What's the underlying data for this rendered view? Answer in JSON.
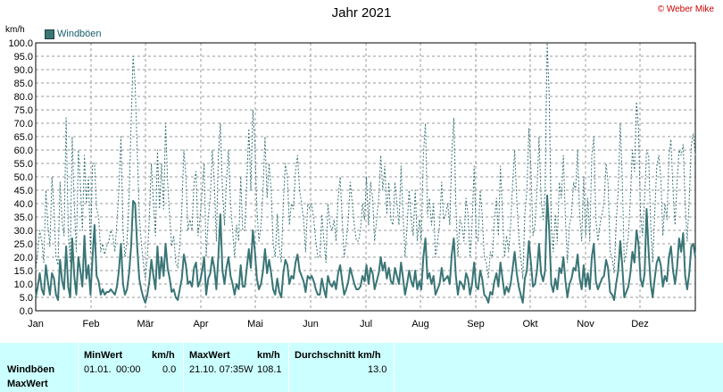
{
  "header": {
    "title": "Jahr 2021",
    "copyright": "© Weber Mike",
    "unit": "km/h"
  },
  "legend": {
    "label": "Windböen",
    "color": "#3a7576"
  },
  "chart_data": {
    "type": "line",
    "title": "Jahr 2021",
    "ylabel": "km/h",
    "ylim": [
      0,
      100
    ],
    "ytick_step": 5,
    "grid": true,
    "legend_position": "top-left",
    "x_labels": [
      "Jan",
      "Feb",
      "Mär",
      "Apr",
      "Mai",
      "Jun",
      "Jul",
      "Aug",
      "Sep",
      "Okt",
      "Nov",
      "Dez"
    ],
    "series": [
      {
        "name": "Windböen",
        "style": "solid",
        "color": "#3a7576",
        "values": [
          5,
          9,
          14,
          8,
          6,
          17,
          11,
          6,
          14,
          12,
          6,
          4,
          19,
          11,
          8,
          24,
          9,
          5,
          27,
          13,
          6,
          20,
          15,
          9,
          28,
          12,
          17,
          6,
          20,
          32,
          13,
          11,
          6,
          8,
          6,
          7,
          7,
          8,
          7,
          6,
          9,
          15,
          25,
          10,
          6,
          8,
          14,
          24,
          41,
          40,
          24,
          12,
          8,
          5,
          3,
          6,
          11,
          19,
          13,
          8,
          24,
          12,
          20,
          13,
          25,
          16,
          12,
          7,
          8,
          5,
          4,
          8,
          12,
          21,
          17,
          10,
          11,
          9,
          16,
          18,
          9,
          11,
          15,
          20,
          6,
          12,
          14,
          20,
          16,
          8,
          20,
          36,
          15,
          10,
          16,
          20,
          13,
          10,
          6,
          10,
          8,
          17,
          9,
          9,
          16,
          23,
          16,
          30,
          22,
          12,
          8,
          10,
          15,
          23,
          14,
          19,
          14,
          8,
          6,
          12,
          7,
          5,
          14,
          19,
          17,
          10,
          13,
          12,
          18,
          21,
          15,
          13,
          11,
          7,
          13,
          12,
          13,
          11,
          8,
          6,
          6,
          12,
          8,
          5,
          13,
          10,
          9,
          11,
          8,
          14,
          17,
          11,
          6,
          8,
          11,
          16,
          13,
          10,
          8,
          8,
          9,
          13,
          11,
          17,
          10,
          16,
          14,
          8,
          11,
          14,
          20,
          15,
          18,
          12,
          16,
          11,
          10,
          16,
          13,
          10,
          18,
          12,
          6,
          10,
          15,
          11,
          9,
          15,
          8,
          11,
          8,
          20,
          27,
          12,
          14,
          10,
          13,
          6,
          8,
          10,
          16,
          11,
          12,
          13,
          10,
          21,
          27,
          13,
          6,
          11,
          10,
          8,
          14,
          12,
          6,
          10,
          18,
          9,
          8,
          15,
          12,
          6,
          5,
          3,
          7,
          6,
          11,
          14,
          9,
          18,
          12,
          6,
          9,
          7,
          10,
          16,
          22,
          14,
          9,
          6,
          3,
          12,
          15,
          26,
          18,
          9,
          10,
          15,
          25,
          14,
          11,
          15,
          43,
          30,
          10,
          7,
          12,
          8,
          16,
          14,
          20,
          11,
          5,
          10,
          12,
          16,
          15,
          21,
          12,
          8,
          17,
          9,
          14,
          8,
          20,
          25,
          11,
          8,
          10,
          12,
          13,
          19,
          16,
          7,
          6,
          4,
          10,
          15,
          26,
          17,
          5,
          7,
          9,
          14,
          22,
          18,
          30,
          25,
          12,
          9,
          14,
          38,
          22,
          10,
          5,
          12,
          18,
          20,
          17,
          9,
          13,
          11,
          20,
          24,
          15,
          10,
          16,
          27,
          22,
          29,
          13,
          8,
          14,
          24,
          25,
          20
        ]
      },
      {
        "name": "MaxWert",
        "style": "dotted",
        "color": "#3a7576",
        "values": [
          15,
          22,
          30,
          26,
          18,
          45,
          32,
          24,
          50,
          38,
          20,
          17,
          48,
          33,
          28,
          72,
          30,
          18,
          65,
          40,
          22,
          60,
          48,
          30,
          58,
          40,
          50,
          22,
          55,
          55,
          38,
          35,
          22,
          25,
          21,
          24,
          26,
          30,
          28,
          22,
          33,
          45,
          65,
          30,
          20,
          26,
          42,
          70,
          95,
          85,
          60,
          36,
          26,
          18,
          12,
          20,
          35,
          55,
          40,
          28,
          60,
          38,
          55,
          38,
          70,
          48,
          35,
          24,
          28,
          18,
          16,
          24,
          38,
          60,
          50,
          30,
          34,
          30,
          48,
          52,
          28,
          35,
          45,
          55,
          20,
          35,
          42,
          60,
          48,
          26,
          58,
          70,
          45,
          32,
          48,
          60,
          40,
          30,
          20,
          32,
          26,
          50,
          30,
          30,
          48,
          68,
          45,
          75,
          62,
          38,
          26,
          32,
          45,
          65,
          42,
          55,
          45,
          25,
          20,
          36,
          24,
          18,
          40,
          55,
          50,
          32,
          40,
          38,
          52,
          58,
          45,
          40,
          34,
          22,
          40,
          38,
          40,
          34,
          26,
          20,
          20,
          36,
          26,
          18,
          40,
          32,
          30,
          34,
          26,
          42,
          50,
          34,
          20,
          26,
          34,
          48,
          40,
          32,
          26,
          26,
          30,
          40,
          34,
          50,
          32,
          48,
          42,
          26,
          34,
          42,
          58,
          45,
          54,
          36,
          48,
          34,
          32,
          48,
          40,
          32,
          54,
          36,
          20,
          32,
          45,
          34,
          28,
          45,
          26,
          34,
          26,
          58,
          70,
          36,
          42,
          32,
          40,
          20,
          26,
          32,
          48,
          34,
          36,
          40,
          32,
          58,
          72,
          40,
          20,
          34,
          32,
          26,
          42,
          36,
          20,
          32,
          54,
          28,
          26,
          45,
          36,
          20,
          18,
          12,
          22,
          20,
          34,
          42,
          28,
          54,
          36,
          20,
          28,
          22,
          32,
          48,
          60,
          42,
          28,
          20,
          12,
          36,
          45,
          68,
          54,
          28,
          32,
          45,
          65,
          42,
          34,
          45,
          100,
          80,
          32,
          22,
          36,
          26,
          48,
          42,
          58,
          34,
          18,
          32,
          36,
          48,
          45,
          60,
          36,
          26,
          50,
          28,
          42,
          26,
          58,
          65,
          34,
          26,
          32,
          36,
          40,
          55,
          48,
          22,
          20,
          14,
          32,
          45,
          70,
          50,
          18,
          22,
          28,
          42,
          60,
          52,
          78,
          68,
          36,
          28,
          42,
          60,
          58,
          32,
          18,
          36,
          54,
          58,
          50,
          28,
          40,
          34,
          58,
          64,
          45,
          32,
          48,
          60,
          58,
          62,
          40,
          26,
          42,
          62,
          66,
          58
        ]
      }
    ]
  },
  "stats": {
    "row_labels": [
      "Windböen",
      "MaxWert"
    ],
    "min_header": "MinWert",
    "min_unit": "km/h",
    "min_date": "01.01.",
    "min_time": "00:00",
    "min_value": "0.0",
    "max_header": "MaxWert",
    "max_unit": "km/h",
    "max_datetime": "21.10.  07:35W",
    "max_value": "108.1",
    "avg_header": "Durchschnitt km/h",
    "avg_value": "13.0"
  }
}
